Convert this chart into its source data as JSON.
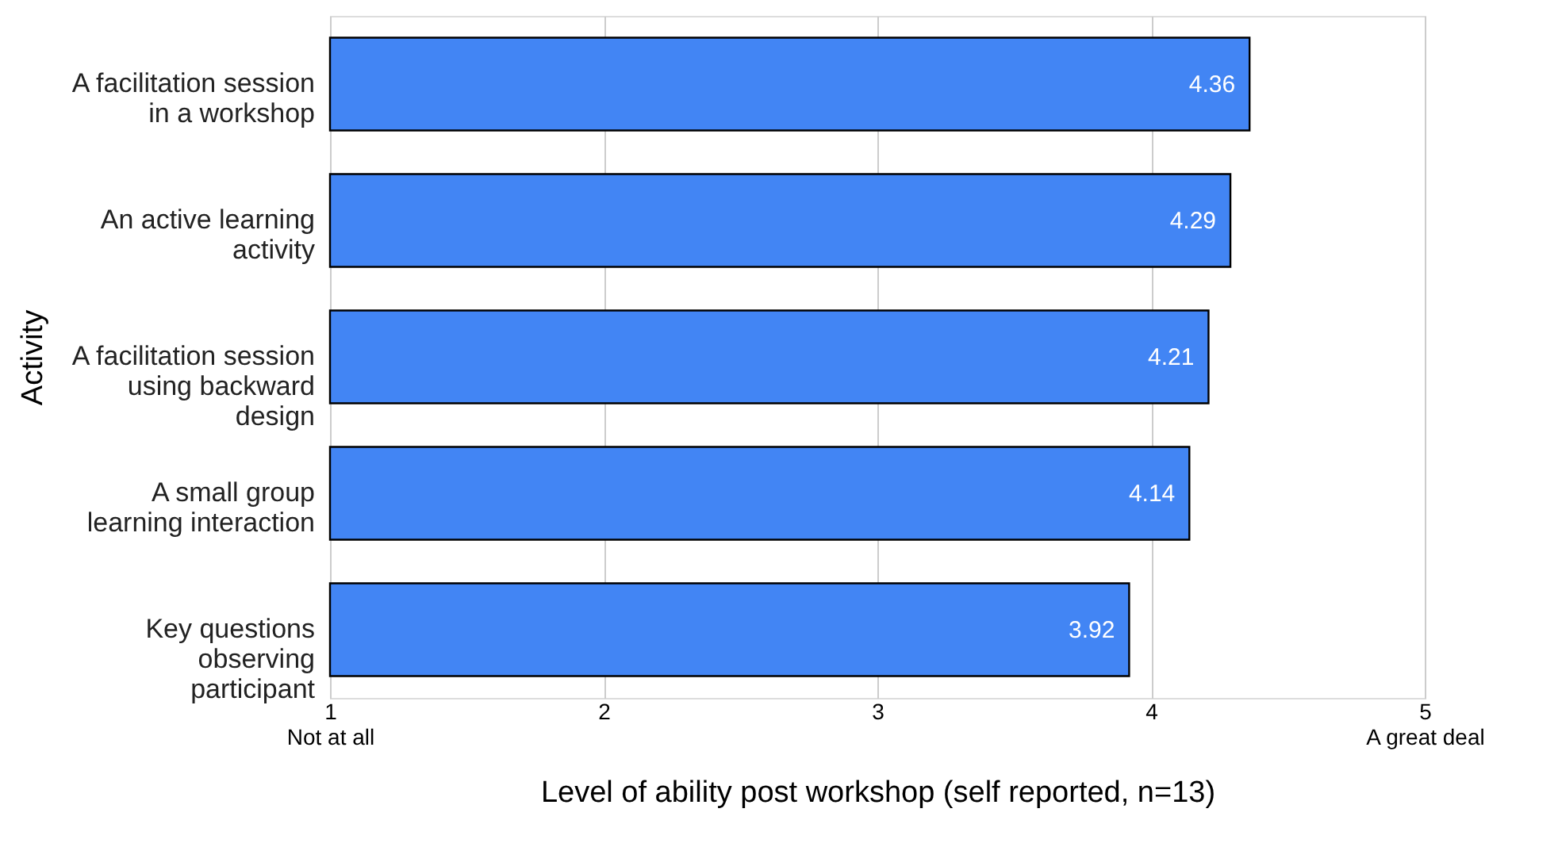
{
  "chart_data": {
    "type": "bar",
    "orientation": "horizontal",
    "xlabel": "Level of ability post workshop (self reported, n=13)",
    "ylabel": "Activity",
    "categories": [
      "A facilitation session\nin a workshop",
      "An active learning\nactivity",
      "A facilitation session\nusing backward\ndesign",
      "A small group\nlearning interaction",
      "Key questions\nobserving\nparticipant"
    ],
    "values": [
      4.36,
      4.29,
      4.21,
      4.14,
      3.92
    ],
    "color": "#4285f4",
    "data_labels": true,
    "xlim": [
      1,
      5
    ],
    "xticks": [
      {
        "value": 1,
        "label": "1\nNot at all"
      },
      2,
      3,
      4,
      {
        "value": 5,
        "label": "5\nA great deal"
      }
    ],
    "grid": "x"
  }
}
